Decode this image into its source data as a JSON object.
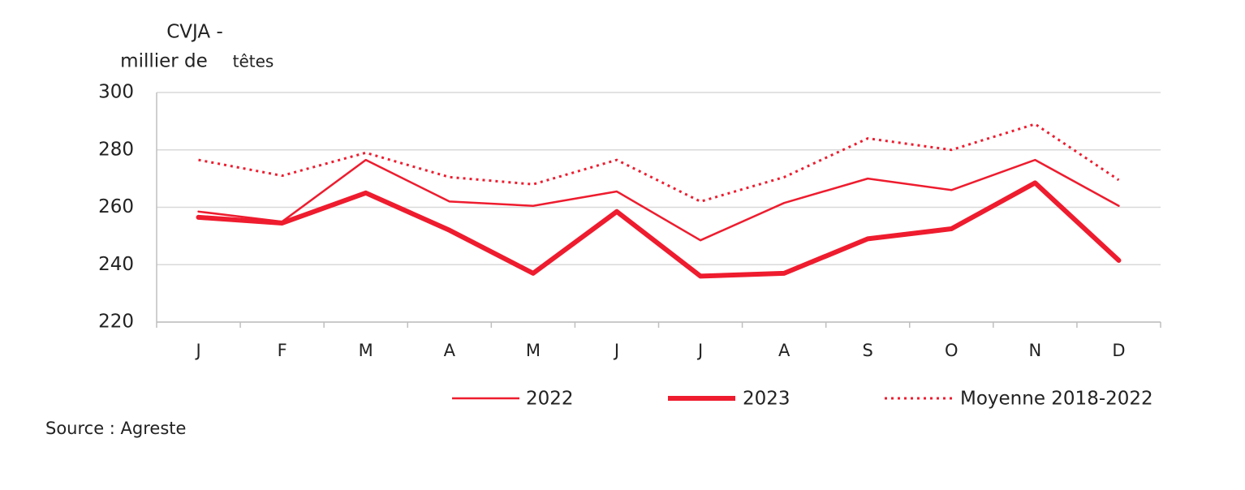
{
  "chart_data": {
    "type": "line",
    "y_label": [
      "CVJA -",
      "millier de",
      "têtes"
    ],
    "source": "Source : Agreste",
    "categories": [
      "J",
      "F",
      "M",
      "A",
      "M",
      "J",
      "J",
      "A",
      "S",
      "O",
      "N",
      "D"
    ],
    "series": [
      {
        "name": "2022",
        "color": "#ee1c2e",
        "linestyle": "thin",
        "values": [
          258.5,
          255,
          276.5,
          262,
          260.5,
          265.5,
          248.5,
          261.5,
          270,
          266,
          276.5,
          260.5
        ]
      },
      {
        "name": "2023",
        "color": "#ee1c2e",
        "linestyle": "thick",
        "values": [
          256.5,
          254.5,
          265,
          252,
          237,
          258.5,
          236,
          237,
          249,
          252.5,
          268.5,
          241.5
        ]
      },
      {
        "name": "Moyenne 2018-2022",
        "color": "#ee1c2e",
        "linestyle": "dotted",
        "values": [
          276.5,
          271,
          279,
          270.5,
          268,
          276.5,
          262,
          270.5,
          284,
          280,
          289,
          269.5
        ]
      }
    ],
    "ylim": [
      220,
      300
    ],
    "yticks": [
      220,
      240,
      260,
      280,
      300
    ],
    "grid": true,
    "legend": "bottom"
  }
}
